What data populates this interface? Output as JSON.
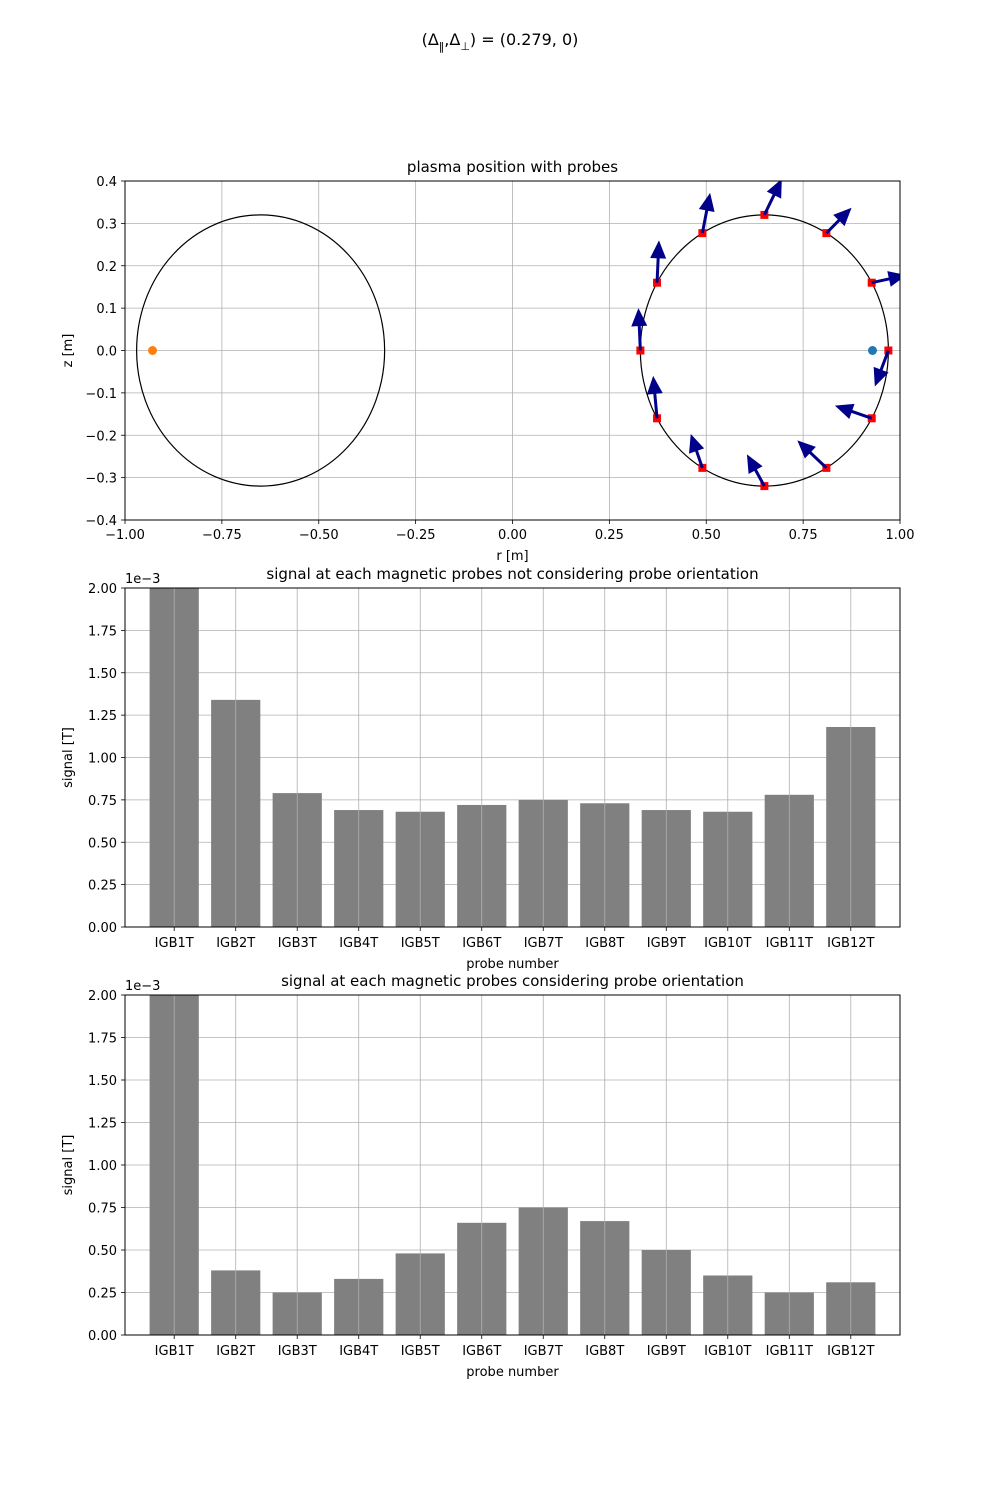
{
  "figure": {
    "suptitle_prefix": "(Δ",
    "suptitle_sub_par": "‖",
    "suptitle_mid": ",Δ",
    "suptitle_sub_perp": "⊥",
    "suptitle_suffix": ") = (0.279, 0)"
  },
  "chart_data": [
    {
      "type": "scatter",
      "title": "plasma position with probes",
      "xlabel": "r [m]",
      "ylabel": "z [m]",
      "xlim": [
        -1.0,
        1.0
      ],
      "ylim": [
        -0.4,
        0.4
      ],
      "xticks": [
        "−1.00",
        "−0.75",
        "−0.50",
        "−0.25",
        "0.00",
        "0.25",
        "0.50",
        "0.75",
        "1.00"
      ],
      "yticks": [
        "−0.4",
        "−0.3",
        "−0.2",
        "−0.1",
        "0.0",
        "0.1",
        "0.2",
        "0.3",
        "0.4"
      ],
      "grid": true,
      "circles": [
        {
          "center": [
            -0.65,
            0.0
          ],
          "radius_r": 0.32,
          "radius_z": 0.32,
          "color": "#000000"
        },
        {
          "center": [
            0.65,
            0.0
          ],
          "radius_r": 0.32,
          "radius_z": 0.32,
          "color": "#000000"
        }
      ],
      "points": [
        {
          "r": 0.929,
          "z": 0.0,
          "color": "#1f77b4"
        },
        {
          "r": -0.929,
          "z": 0.0,
          "color": "#ff7f0e"
        }
      ],
      "probe_color": "#ff0000",
      "arrow_color": "#00008b",
      "probes": [
        {
          "r": 0.97,
          "z": 0.0,
          "u": -0.035,
          "v": -0.085
        },
        {
          "r": 0.927,
          "z": 0.16,
          "u": 0.09,
          "v": 0.018
        },
        {
          "r": 0.81,
          "z": 0.277,
          "u": 0.065,
          "v": 0.06
        },
        {
          "r": 0.65,
          "z": 0.32,
          "u": 0.045,
          "v": 0.085
        },
        {
          "r": 0.49,
          "z": 0.277,
          "u": 0.02,
          "v": 0.095
        },
        {
          "r": 0.373,
          "z": 0.16,
          "u": 0.005,
          "v": 0.1
        },
        {
          "r": 0.33,
          "z": 0.0,
          "u": -0.005,
          "v": 0.1
        },
        {
          "r": 0.373,
          "z": -0.16,
          "u": -0.01,
          "v": 0.1
        },
        {
          "r": 0.49,
          "z": -0.277,
          "u": -0.03,
          "v": 0.08
        },
        {
          "r": 0.65,
          "z": -0.32,
          "u": -0.045,
          "v": 0.075
        },
        {
          "r": 0.81,
          "z": -0.277,
          "u": -0.075,
          "v": 0.065
        },
        {
          "r": 0.927,
          "z": -0.16,
          "u": -0.095,
          "v": 0.03
        }
      ]
    },
    {
      "type": "bar",
      "title": "signal at each magnetic probes not considering probe orientation",
      "xlabel": "probe number",
      "ylabel": "signal [T]",
      "offset_text": "1e−3",
      "ylim": [
        0,
        2.0
      ],
      "yticks": [
        "0.00",
        "0.25",
        "0.50",
        "0.75",
        "1.00",
        "1.25",
        "1.50",
        "1.75",
        "2.00"
      ],
      "grid": true,
      "color": "#808080",
      "categories": [
        "IGB1T",
        "IGB2T",
        "IGB3T",
        "IGB4T",
        "IGB5T",
        "IGB6T",
        "IGB7T",
        "IGB8T",
        "IGB9T",
        "IGB10T",
        "IGB11T",
        "IGB12T"
      ],
      "values": [
        2.0,
        1.34,
        0.79,
        0.69,
        0.68,
        0.72,
        0.75,
        0.73,
        0.69,
        0.68,
        0.78,
        1.18
      ]
    },
    {
      "type": "bar",
      "title": "signal at each magnetic probes considering probe orientation",
      "xlabel": "probe number",
      "ylabel": "signal [T]",
      "offset_text": "1e−3",
      "ylim": [
        0,
        2.0
      ],
      "yticks": [
        "0.00",
        "0.25",
        "0.50",
        "0.75",
        "1.00",
        "1.25",
        "1.50",
        "1.75",
        "2.00"
      ],
      "grid": true,
      "color": "#808080",
      "categories": [
        "IGB1T",
        "IGB2T",
        "IGB3T",
        "IGB4T",
        "IGB5T",
        "IGB6T",
        "IGB7T",
        "IGB8T",
        "IGB9T",
        "IGB10T",
        "IGB11T",
        "IGB12T"
      ],
      "values": [
        2.0,
        0.38,
        0.25,
        0.33,
        0.48,
        0.66,
        0.75,
        0.67,
        0.5,
        0.35,
        0.25,
        0.31
      ]
    }
  ]
}
